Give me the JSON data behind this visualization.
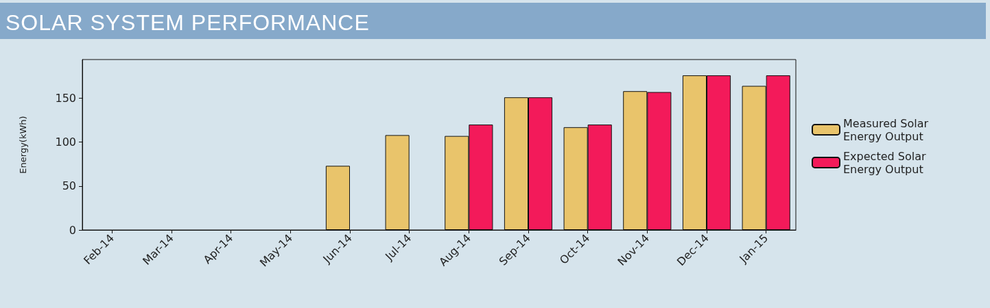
{
  "chart_data": {
    "type": "bar",
    "title": "SOLAR SYSTEM PERFORMANCE",
    "ylabel": "Energy(kWh)",
    "categories": [
      "Feb-14",
      "Mar-14",
      "Apr-14",
      "May-14",
      "Jun-14",
      "Jul-14",
      "Aug-14",
      "Sep-14",
      "Oct-14",
      "Nov-14",
      "Dec-14",
      "Jan-15"
    ],
    "series": [
      {
        "name": "Measured Solar Energy Output",
        "color": "#e9c46b",
        "values": [
          null,
          null,
          null,
          null,
          73,
          108,
          107,
          151,
          117,
          158,
          176,
          164
        ]
      },
      {
        "name": "Expected Solar Energy Output",
        "color": "#f31a5a",
        "values": [
          null,
          null,
          null,
          null,
          null,
          null,
          120,
          151,
          120,
          157,
          176,
          176
        ]
      }
    ],
    "ylim": [
      0,
      194
    ],
    "yticks": [
      0,
      50,
      100,
      150
    ],
    "grid": false,
    "legend": "right"
  }
}
